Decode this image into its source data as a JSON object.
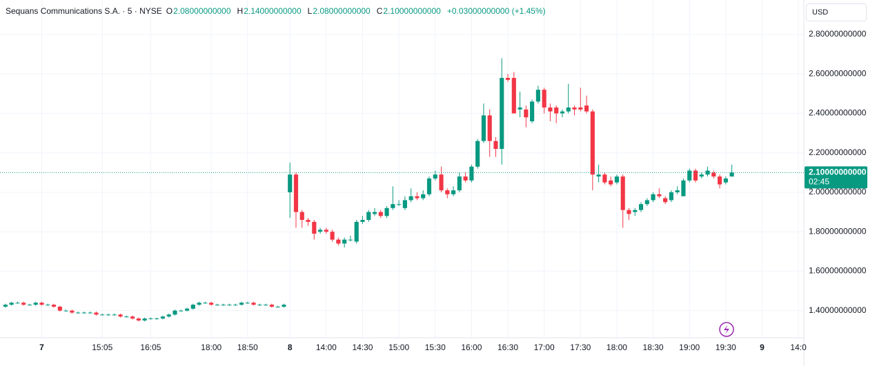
{
  "header": {
    "name": "Sequans Communications S.A. · 5 · NYSE",
    "fields": [
      {
        "key": "O",
        "value": "2.08000000000"
      },
      {
        "key": "H",
        "value": "2.14000000000"
      },
      {
        "key": "L",
        "value": "2.08000000000"
      },
      {
        "key": "C",
        "value": "2.10000000000"
      }
    ],
    "change": "+0.03000000000 (+1.45%)",
    "currency": "USD",
    "price_label": "2.10000000000",
    "countdown": "02:45"
  },
  "chart_data": {
    "type": "candlestick",
    "up_color": "#089981",
    "down_color": "#f23645",
    "grid": true,
    "last_price": 2.1,
    "ylim": [
      1.2625,
      2.975
    ],
    "yticks": [
      {
        "value": 1.4,
        "label": "1.40000000000"
      },
      {
        "value": 1.6,
        "label": "1.60000000000"
      },
      {
        "value": 1.8,
        "label": "1.80000000000"
      },
      {
        "value": 2.0,
        "label": "2.00000000000"
      },
      {
        "value": 2.2,
        "label": "2.20000000000"
      },
      {
        "value": 2.4,
        "label": "2.40000000000"
      },
      {
        "value": 2.6,
        "label": "2.60000000000"
      },
      {
        "value": 2.8,
        "label": "2.80000000000"
      }
    ],
    "xlim": [
      -0.9,
      131.9
    ],
    "xticks": [
      {
        "value": 6,
        "label": "7"
      },
      {
        "value": 16,
        "label": "15:05"
      },
      {
        "value": 24,
        "label": "16:05"
      },
      {
        "value": 34,
        "label": "18:00"
      },
      {
        "value": 40,
        "label": "18:50"
      },
      {
        "value": 47,
        "label": "8"
      },
      {
        "value": 53,
        "label": "14:00"
      },
      {
        "value": 59,
        "label": "14:30"
      },
      {
        "value": 65,
        "label": "15:00"
      },
      {
        "value": 71,
        "label": "15:30"
      },
      {
        "value": 77,
        "label": "16:00"
      },
      {
        "value": 83,
        "label": "16:30"
      },
      {
        "value": 89,
        "label": "17:00"
      },
      {
        "value": 95,
        "label": "17:30"
      },
      {
        "value": 101,
        "label": "18:00"
      },
      {
        "value": 107,
        "label": "18:30"
      },
      {
        "value": 113,
        "label": "19:00"
      },
      {
        "value": 119,
        "label": "19:30"
      },
      {
        "value": 125,
        "label": "9"
      },
      {
        "value": 131,
        "label": "14:0"
      }
    ],
    "open": [
      1.42,
      1.43,
      1.44,
      1.44,
      1.43,
      1.43,
      1.44,
      1.43,
      1.43,
      1.42,
      1.4,
      1.4,
      1.39,
      1.39,
      1.39,
      1.39,
      1.38,
      1.38,
      1.38,
      1.38,
      1.37,
      1.37,
      1.36,
      1.35,
      1.36,
      1.36,
      1.36,
      1.37,
      1.38,
      1.4,
      1.4,
      1.41,
      1.43,
      1.44,
      1.44,
      1.43,
      1.43,
      1.43,
      1.43,
      1.43,
      1.44,
      1.44,
      1.43,
      1.43,
      1.43,
      1.42,
      1.42,
      2.0,
      2.09,
      1.9,
      1.86,
      1.85,
      1.8,
      1.81,
      1.8,
      1.76,
      1.74,
      1.76,
      1.75,
      1.85,
      1.86,
      1.89,
      1.9,
      1.88,
      1.92,
      1.94,
      1.92,
      1.96,
      1.98,
      1.97,
      1.99,
      2.07,
      2.09,
      2.01,
      1.99,
      2.01,
      2.08,
      2.06,
      2.13,
      2.26,
      2.39,
      2.26,
      2.22,
      2.58,
      2.58,
      2.42,
      2.42,
      2.36,
      2.46,
      2.52,
      2.43,
      2.43,
      2.4,
      2.41,
      2.43,
      2.43,
      2.44,
      2.41,
      2.08,
      2.09,
      2.06,
      2.05,
      2.08,
      1.91,
      1.9,
      1.91,
      1.94,
      1.96,
      1.99,
      1.97,
      1.96,
      2.0,
      1.98,
      2.06,
      2.11,
      2.08,
      2.09,
      2.1,
      2.08,
      2.05,
      2.08
    ],
    "high": [
      1.435,
      1.445,
      1.445,
      1.445,
      1.435,
      1.445,
      1.445,
      1.435,
      1.435,
      1.425,
      1.405,
      1.405,
      1.395,
      1.395,
      1.395,
      1.395,
      1.385,
      1.385,
      1.385,
      1.385,
      1.375,
      1.375,
      1.365,
      1.365,
      1.365,
      1.365,
      1.375,
      1.385,
      1.405,
      1.405,
      1.415,
      1.435,
      1.445,
      1.445,
      1.445,
      1.435,
      1.435,
      1.435,
      1.435,
      1.445,
      1.445,
      1.445,
      1.435,
      1.435,
      1.435,
      1.425,
      1.435,
      2.15,
      2.1,
      1.91,
      1.87,
      1.86,
      1.82,
      1.82,
      1.81,
      1.77,
      1.77,
      1.78,
      1.86,
      1.88,
      1.91,
      1.92,
      1.91,
      1.93,
      2.03,
      1.96,
      1.98,
      2.02,
      2.0,
      2.01,
      2.08,
      2.11,
      2.13,
      2.02,
      2.03,
      2.1,
      2.1,
      2.14,
      2.27,
      2.45,
      2.42,
      2.28,
      2.68,
      2.6,
      2.61,
      2.51,
      2.44,
      2.47,
      2.54,
      2.53,
      2.45,
      2.44,
      2.42,
      2.55,
      2.44,
      2.53,
      2.49,
      2.42,
      2.14,
      2.1,
      2.08,
      2.09,
      2.09,
      1.92,
      1.92,
      1.95,
      1.97,
      2.0,
      2.02,
      1.98,
      2.01,
      2.03,
      2.07,
      2.12,
      2.12,
      2.1,
      2.13,
      2.11,
      2.09,
      2.08,
      2.14
    ],
    "low": [
      1.415,
      1.425,
      1.435,
      1.425,
      1.425,
      1.425,
      1.425,
      1.425,
      1.415,
      1.395,
      1.395,
      1.385,
      1.385,
      1.385,
      1.385,
      1.375,
      1.375,
      1.375,
      1.375,
      1.365,
      1.365,
      1.355,
      1.345,
      1.345,
      1.355,
      1.355,
      1.355,
      1.365,
      1.375,
      1.395,
      1.395,
      1.405,
      1.425,
      1.435,
      1.425,
      1.425,
      1.425,
      1.425,
      1.425,
      1.425,
      1.435,
      1.425,
      1.425,
      1.425,
      1.415,
      1.415,
      1.415,
      1.87,
      1.82,
      1.82,
      1.83,
      1.76,
      1.79,
      1.79,
      1.75,
      1.73,
      1.72,
      1.75,
      1.74,
      1.84,
      1.85,
      1.88,
      1.87,
      1.87,
      1.91,
      1.93,
      1.91,
      1.95,
      1.96,
      1.96,
      1.98,
      2.06,
      2.0,
      1.97,
      1.98,
      2.0,
      2.05,
      2.05,
      2.12,
      2.25,
      2.18,
      2.18,
      2.14,
      2.56,
      2.4,
      2.38,
      2.33,
      2.35,
      2.45,
      2.4,
      2.36,
      2.35,
      2.38,
      2.4,
      2.39,
      2.41,
      2.4,
      2.01,
      2.05,
      2.04,
      2.03,
      2.04,
      1.82,
      1.86,
      1.88,
      1.9,
      1.93,
      1.95,
      1.97,
      1.94,
      1.95,
      1.99,
      1.98,
      2.05,
      2.05,
      2.07,
      2.08,
      2.07,
      2.02,
      2.04,
      2.08
    ],
    "close": [
      1.43,
      1.44,
      1.44,
      1.43,
      1.43,
      1.44,
      1.43,
      1.43,
      1.42,
      1.4,
      1.4,
      1.39,
      1.39,
      1.39,
      1.39,
      1.38,
      1.38,
      1.38,
      1.38,
      1.37,
      1.37,
      1.36,
      1.35,
      1.36,
      1.36,
      1.36,
      1.37,
      1.38,
      1.4,
      1.4,
      1.41,
      1.43,
      1.44,
      1.44,
      1.43,
      1.43,
      1.43,
      1.43,
      1.43,
      1.44,
      1.44,
      1.43,
      1.43,
      1.43,
      1.42,
      1.42,
      1.43,
      2.09,
      1.9,
      1.86,
      1.85,
      1.79,
      1.81,
      1.8,
      1.76,
      1.74,
      1.76,
      1.76,
      1.85,
      1.86,
      1.9,
      1.9,
      1.88,
      1.92,
      1.94,
      1.94,
      1.96,
      1.98,
      1.97,
      1.99,
      2.07,
      2.09,
      2.01,
      1.99,
      2.01,
      2.08,
      2.06,
      2.13,
      2.26,
      2.39,
      2.26,
      2.22,
      2.58,
      2.57,
      2.4,
      2.43,
      2.38,
      2.46,
      2.52,
      2.43,
      2.41,
      2.4,
      2.41,
      2.43,
      2.42,
      2.42,
      2.41,
      2.09,
      2.09,
      2.05,
      2.04,
      2.08,
      1.91,
      1.89,
      1.91,
      1.94,
      1.96,
      1.99,
      1.98,
      1.95,
      2.0,
      2.01,
      2.06,
      2.11,
      2.06,
      2.09,
      2.11,
      2.08,
      2.04,
      2.07,
      2.1
    ]
  }
}
